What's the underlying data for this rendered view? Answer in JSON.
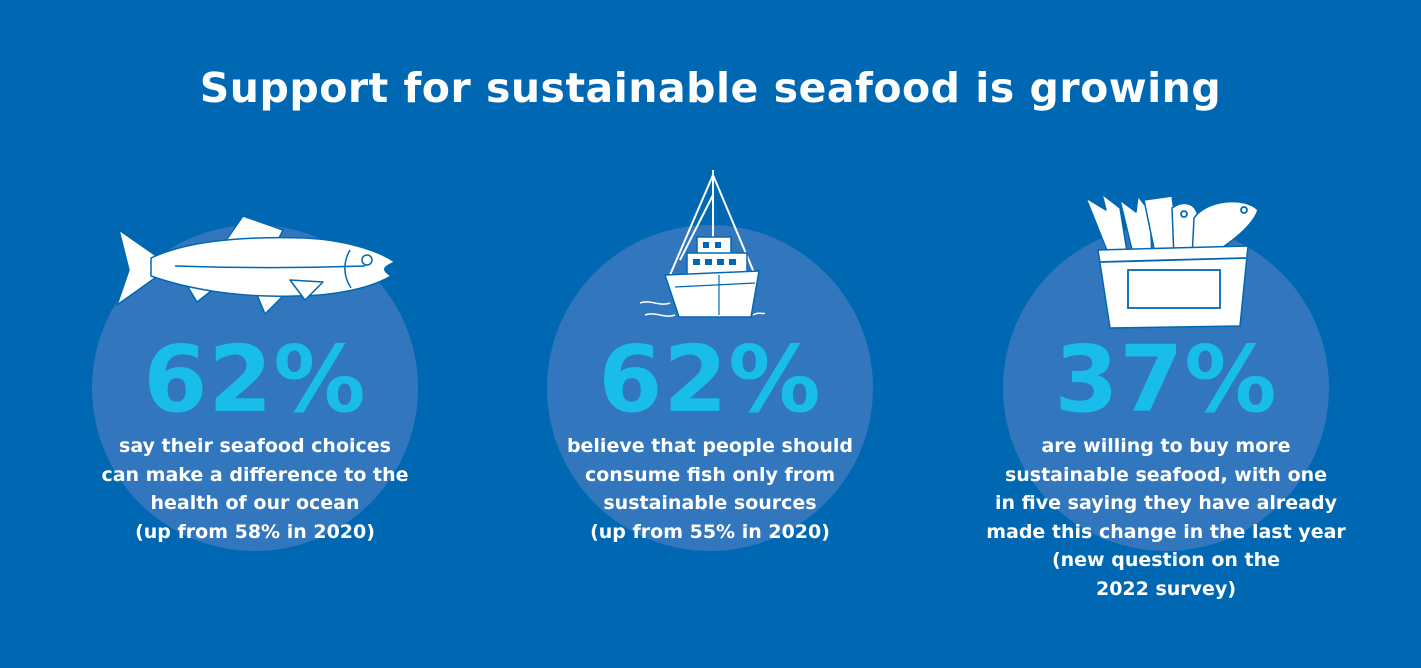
{
  "title": "Support for sustainable seafood is growing",
  "stats": [
    {
      "value": "62%",
      "icon": "salmon-icon",
      "lines": [
        "say their seafood choices",
        "can make a difference to the",
        "health of our ocean",
        "(up from 58% in 2020)"
      ]
    },
    {
      "value": "62%",
      "icon": "fishing-boat-icon",
      "lines": [
        "believe that people should",
        "consume fish only from",
        "sustainable sources",
        "(up from 55% in 2020)"
      ]
    },
    {
      "value": "37%",
      "icon": "fish-crate-icon",
      "lines": [
        "are willing to buy more",
        "sustainable seafood, with one",
        "in five saying they have already",
        "made this change in the last year",
        "(new question on the",
        "2022 survey)"
      ]
    }
  ],
  "colors": {
    "background": "#0068b3",
    "circle": "#3277bd",
    "percent": "#18bde9",
    "text": "#ffffff"
  }
}
